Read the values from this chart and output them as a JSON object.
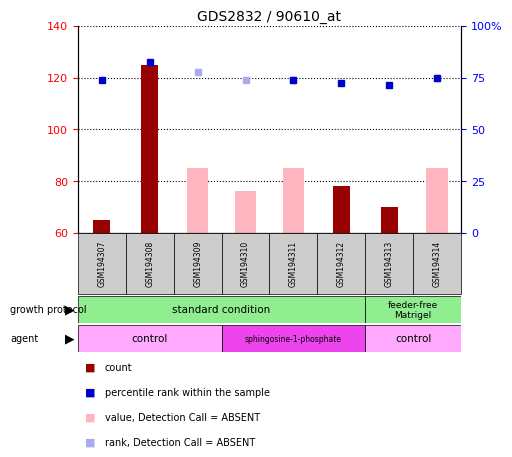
{
  "title": "GDS2832 / 90610_at",
  "samples": [
    "GSM194307",
    "GSM194308",
    "GSM194309",
    "GSM194310",
    "GSM194311",
    "GSM194312",
    "GSM194313",
    "GSM194314"
  ],
  "count_values": [
    65,
    125,
    null,
    null,
    null,
    78,
    70,
    null
  ],
  "rank_values": [
    119,
    126,
    null,
    null,
    119,
    118,
    117,
    120
  ],
  "absent_value_bars": [
    null,
    null,
    85,
    76,
    85,
    null,
    null,
    85
  ],
  "absent_rank_dots": [
    null,
    null,
    122,
    119,
    119,
    null,
    null,
    120
  ],
  "ylim_left": [
    60,
    140
  ],
  "ylim_right": [
    0,
    100
  ],
  "yticks_left": [
    60,
    80,
    100,
    120,
    140
  ],
  "yticks_right": [
    0,
    25,
    50,
    75,
    100
  ],
  "ytick_right_labels": [
    "0",
    "25",
    "50",
    "75",
    "100%"
  ],
  "count_color": "#990000",
  "rank_color": "#0000CC",
  "absent_value_color": "#FFB6C1",
  "absent_rank_color": "#AAAAEE",
  "growth_std_color": "#90EE90",
  "agent_control_color": "#FFAAFF",
  "agent_sph_color": "#EE44EE",
  "sample_box_color": "#CCCCCC",
  "bar_width": 0.35,
  "absent_bar_width": 0.45
}
